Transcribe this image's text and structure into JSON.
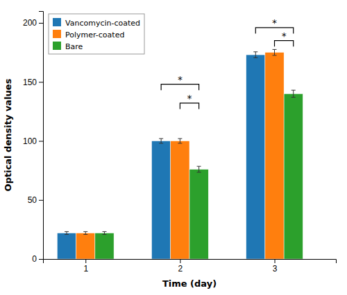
{
  "chart_data": {
    "type": "bar",
    "xlabel": "Time (day)",
    "ylabel": "Optical density values",
    "x": [
      1,
      2,
      3
    ],
    "xlim": [
      0.55,
      3.65
    ],
    "xticks": [
      1,
      2,
      3
    ],
    "ylim": [
      0,
      210
    ],
    "yticks": [
      0,
      50,
      100,
      150,
      200
    ],
    "series": [
      {
        "name": "Vancomycin-coated",
        "values": [
          22,
          100,
          173
        ],
        "errors": [
          1.2,
          2.0,
          2.5
        ]
      },
      {
        "name": "Polymer-coated",
        "values": [
          22,
          100,
          175
        ],
        "errors": [
          1.2,
          2.0,
          2.5
        ]
      },
      {
        "name": "Bare",
        "values": [
          22,
          76,
          140
        ],
        "errors": [
          1.2,
          2.5,
          3.0
        ]
      }
    ],
    "annotations": [
      {
        "text": "*",
        "x": 2,
        "between": [
          "Vancomycin-coated",
          "Bare"
        ],
        "y": 148
      },
      {
        "text": "*",
        "x": 2,
        "between": [
          "Polymer-coated",
          "Bare"
        ],
        "y": 132
      },
      {
        "text": "*",
        "x": 3,
        "between": [
          "Vancomycin-coated",
          "Bare"
        ],
        "y": 196
      },
      {
        "text": "*",
        "x": 3,
        "between": [
          "Polymer-coated",
          "Bare"
        ],
        "y": 185
      }
    ],
    "grid": false,
    "legend": "upper left"
  }
}
